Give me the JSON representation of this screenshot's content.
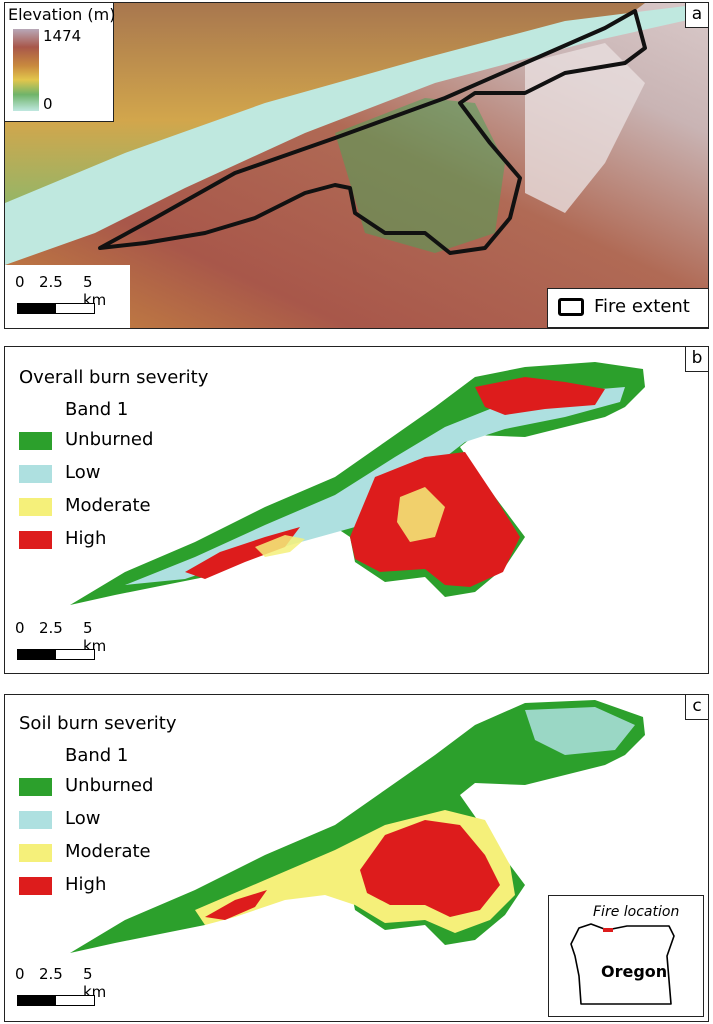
{
  "panels": {
    "a": {
      "letter": "a",
      "elevation_legend": {
        "title": "Elevation (m)",
        "max": "1474",
        "min": "0"
      },
      "fire_legend_label": "Fire extent",
      "scale": {
        "ticks": [
          "0",
          "2.5",
          "5 km"
        ]
      }
    },
    "b": {
      "letter": "b",
      "title": "Overall burn severity",
      "band": "Band 1",
      "classes": [
        {
          "label": "Unburned",
          "color": "#2ca02c"
        },
        {
          "label": "Low",
          "color": "#aee0e0"
        },
        {
          "label": "Moderate",
          "color": "#f5f07a"
        },
        {
          "label": "High",
          "color": "#dd1c1c"
        }
      ],
      "scale": {
        "ticks": [
          "0",
          "2.5",
          "5 km"
        ]
      }
    },
    "c": {
      "letter": "c",
      "title": "Soil burn severity",
      "band": "Band 1",
      "classes": [
        {
          "label": "Unburned",
          "color": "#2ca02c"
        },
        {
          "label": "Low",
          "color": "#aee0e0"
        },
        {
          "label": "Moderate",
          "color": "#f5f07a"
        },
        {
          "label": "High",
          "color": "#dd1c1c"
        }
      ],
      "scale": {
        "ticks": [
          "0",
          "2.5",
          "5 km"
        ]
      },
      "inset": {
        "caption": "Fire location",
        "state": "Oregon",
        "marker_color": "#dd1c1c"
      }
    }
  },
  "colors": {
    "river": "#bfe8df",
    "fire_outline": "#111111"
  }
}
